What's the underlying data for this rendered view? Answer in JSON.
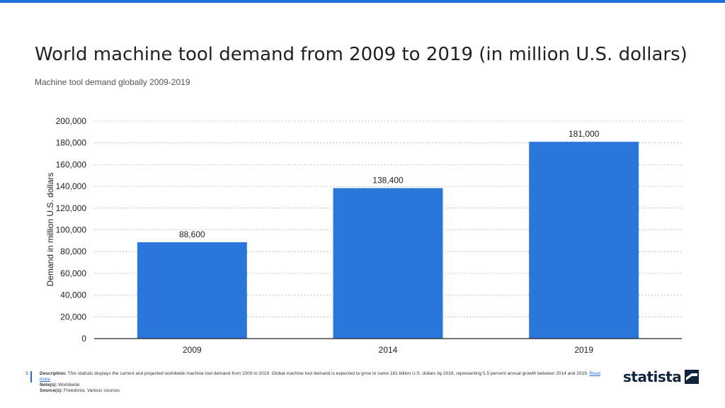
{
  "header": {
    "title": "World machine tool demand from 2009 to 2019 (in million U.S. dollars)",
    "subtitle": "Machine tool demand globally 2009-2019"
  },
  "chart_data": {
    "type": "bar",
    "categories": [
      "2009",
      "2014",
      "2019"
    ],
    "values": [
      88600,
      138400,
      181000
    ],
    "value_labels": [
      "88,600",
      "138,400",
      "181,000"
    ],
    "ylabel": "Demand in million U.S. dollars",
    "xlabel": "",
    "ylim": [
      0,
      200000
    ],
    "yticks": [
      0,
      20000,
      40000,
      60000,
      80000,
      100000,
      120000,
      140000,
      160000,
      180000,
      200000
    ],
    "ytick_labels": [
      "0",
      "20,000",
      "40,000",
      "60,000",
      "80,000",
      "100,000",
      "120,000",
      "140,000",
      "160,000",
      "180,000",
      "200,000"
    ],
    "grid": true,
    "bar_color": "#2b76db"
  },
  "footer": {
    "page_number": "3",
    "description_label": "Description:",
    "description": "This statistic displays the current and projected worldwide machine tool demand from 2009 to 2019. Global machine tool demand is expected to grow to some 181 billion U.S. dollars by 2019, representing 5.5 percent annual growth between 2014 and 2019.",
    "read_more": "Read more",
    "notes_label": "Note(s):",
    "notes": "Worldwide",
    "source_label": "Source(s):",
    "source": "Freedonia; Various sources"
  },
  "brand": {
    "logo_text": "statista",
    "logo_icon": "statista-logo-icon",
    "accent_color": "#1f6fd6"
  }
}
